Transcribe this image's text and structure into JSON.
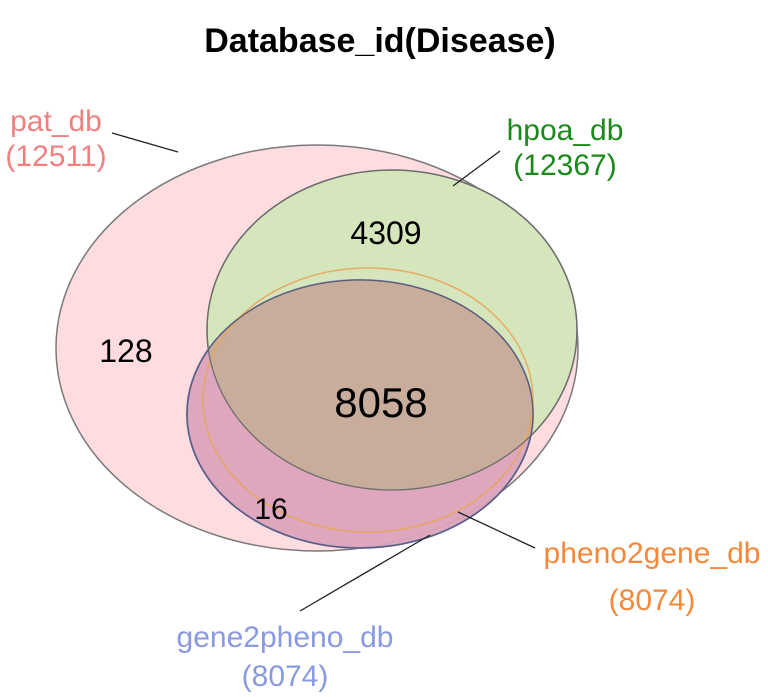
{
  "title": "Database_id(Disease)",
  "sets": [
    {
      "key": "pat_db",
      "name": "pat_db",
      "size": "(12511)",
      "color": "#f08080",
      "fill": "#ffc8cf"
    },
    {
      "key": "hpoa_db",
      "name": "hpoa_db",
      "size": "(12367)",
      "color": "#1a8a1a",
      "fill": "#bcdca6"
    },
    {
      "key": "gene2pheno_db",
      "name": "gene2pheno_db",
      "size": "(8074)",
      "color": "#8a9ae0",
      "fill": "#b9b9ec"
    },
    {
      "key": "pheno2gene_db",
      "name": "pheno2gene_db",
      "size": "(8074)",
      "color": "#f5883a",
      "fill": "#e8b48a"
    }
  ],
  "regions": {
    "pat_only": "128",
    "pat_hpoa": "4309",
    "all": "8058",
    "pat_gene_pheno": "16"
  }
}
